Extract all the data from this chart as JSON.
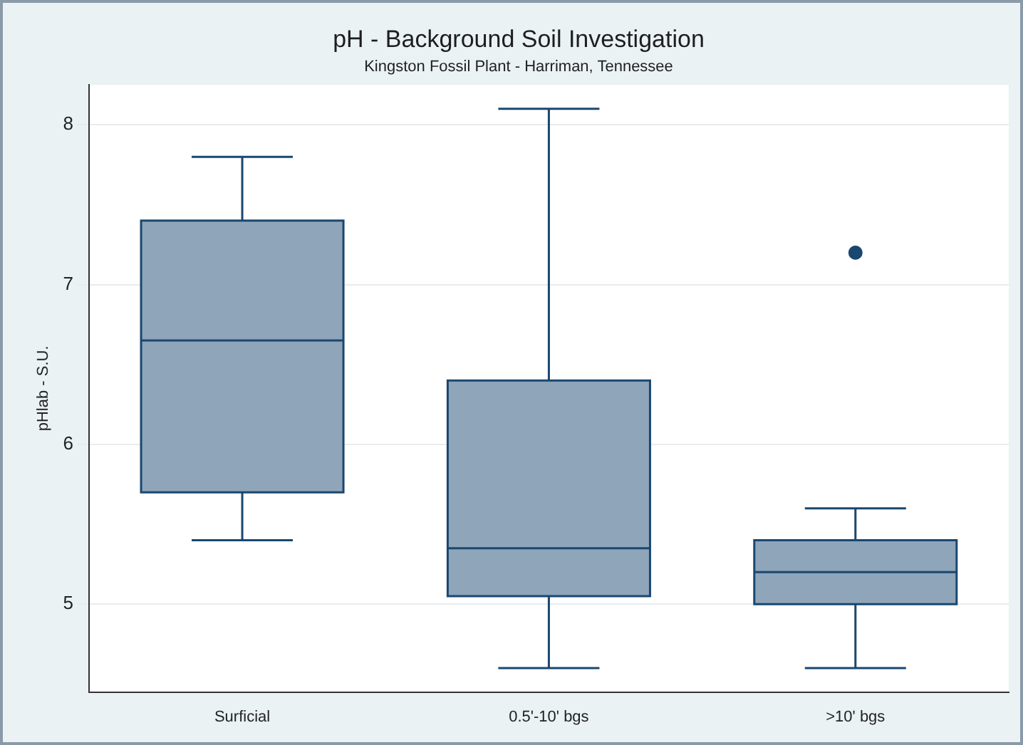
{
  "chart_data": {
    "type": "box",
    "title": "pH - Background Soil Investigation",
    "subtitle": "Kingston Fossil Plant - Harriman, Tennessee",
    "ylabel": "pHlab - S.U.",
    "categories": [
      "Surficial",
      "0.5'-10' bgs",
      ">10' bgs"
    ],
    "series": [
      {
        "color": "#8fa5ba",
        "boxes": [
          {
            "low": 5.4,
            "q1": 5.7,
            "median": 6.65,
            "q3": 7.4,
            "high": 7.8
          },
          {
            "low": 4.6,
            "q1": 5.05,
            "median": 5.35,
            "q3": 6.4,
            "high": 8.1
          },
          {
            "low": 4.6,
            "q1": 5.0,
            "median": 5.2,
            "q3": 5.4,
            "high": 5.6,
            "outliers": [
              7.2
            ]
          }
        ]
      }
    ],
    "ylim": [
      4.45,
      8.25
    ],
    "yticks": [
      5,
      6,
      7,
      8
    ],
    "grid": "y"
  }
}
